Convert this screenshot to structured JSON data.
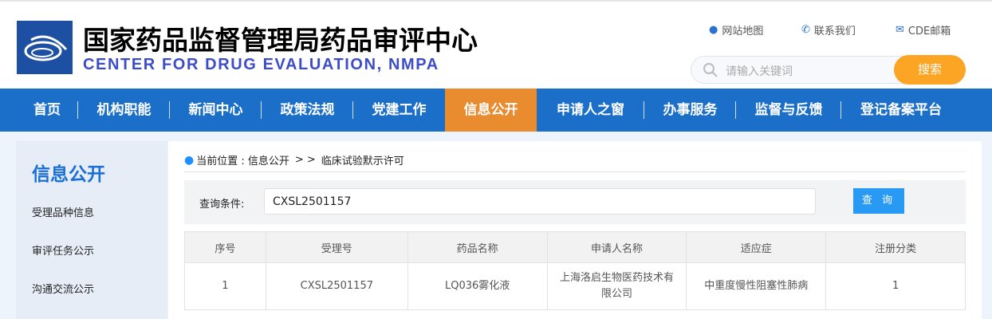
{
  "header": {
    "title_cn": "国家药品监督管理局药品审评中心",
    "title_en": "CENTER FOR DRUG EVALUATION, NMPA",
    "links": [
      {
        "label": "网站地图",
        "icon": "map-pin-icon"
      },
      {
        "label": "联系我们",
        "icon": "phone-icon"
      },
      {
        "label": "CDE邮箱",
        "icon": "mail-icon"
      }
    ],
    "search_placeholder": "请输入关键词",
    "search_button": "搜索"
  },
  "nav": {
    "items": [
      "首页",
      "机构职能",
      "新闻中心",
      "政策法规",
      "党建工作",
      "信息公开",
      "申请人之窗",
      "办事服务",
      "监督与反馈",
      "登记备案平台"
    ],
    "active": "信息公开"
  },
  "sidebar": {
    "title": "信息公开",
    "items": [
      "受理品种信息",
      "审评任务公示",
      "沟通交流公示"
    ]
  },
  "breadcrumb": {
    "prefix": "当前位置 : 信息公开",
    "sep": "> >",
    "current": "临床试验默示许可"
  },
  "query": {
    "label": "查询条件:",
    "value": "CXSL2501157",
    "button": "查 询"
  },
  "table": {
    "headers": [
      "序号",
      "受理号",
      "药品名称",
      "申请人名称",
      "适应症",
      "注册分类"
    ],
    "rows": [
      [
        "1",
        "CXSL2501157",
        "LQ036雾化液",
        "上海洛启生物医药技术有限公司",
        "中重度慢性阻塞性肺病",
        "1"
      ]
    ]
  },
  "colors": {
    "nav": "#1b6fc8",
    "active": "#e98b2f",
    "search_button": "#fca524",
    "query_button": "#289af3"
  }
}
